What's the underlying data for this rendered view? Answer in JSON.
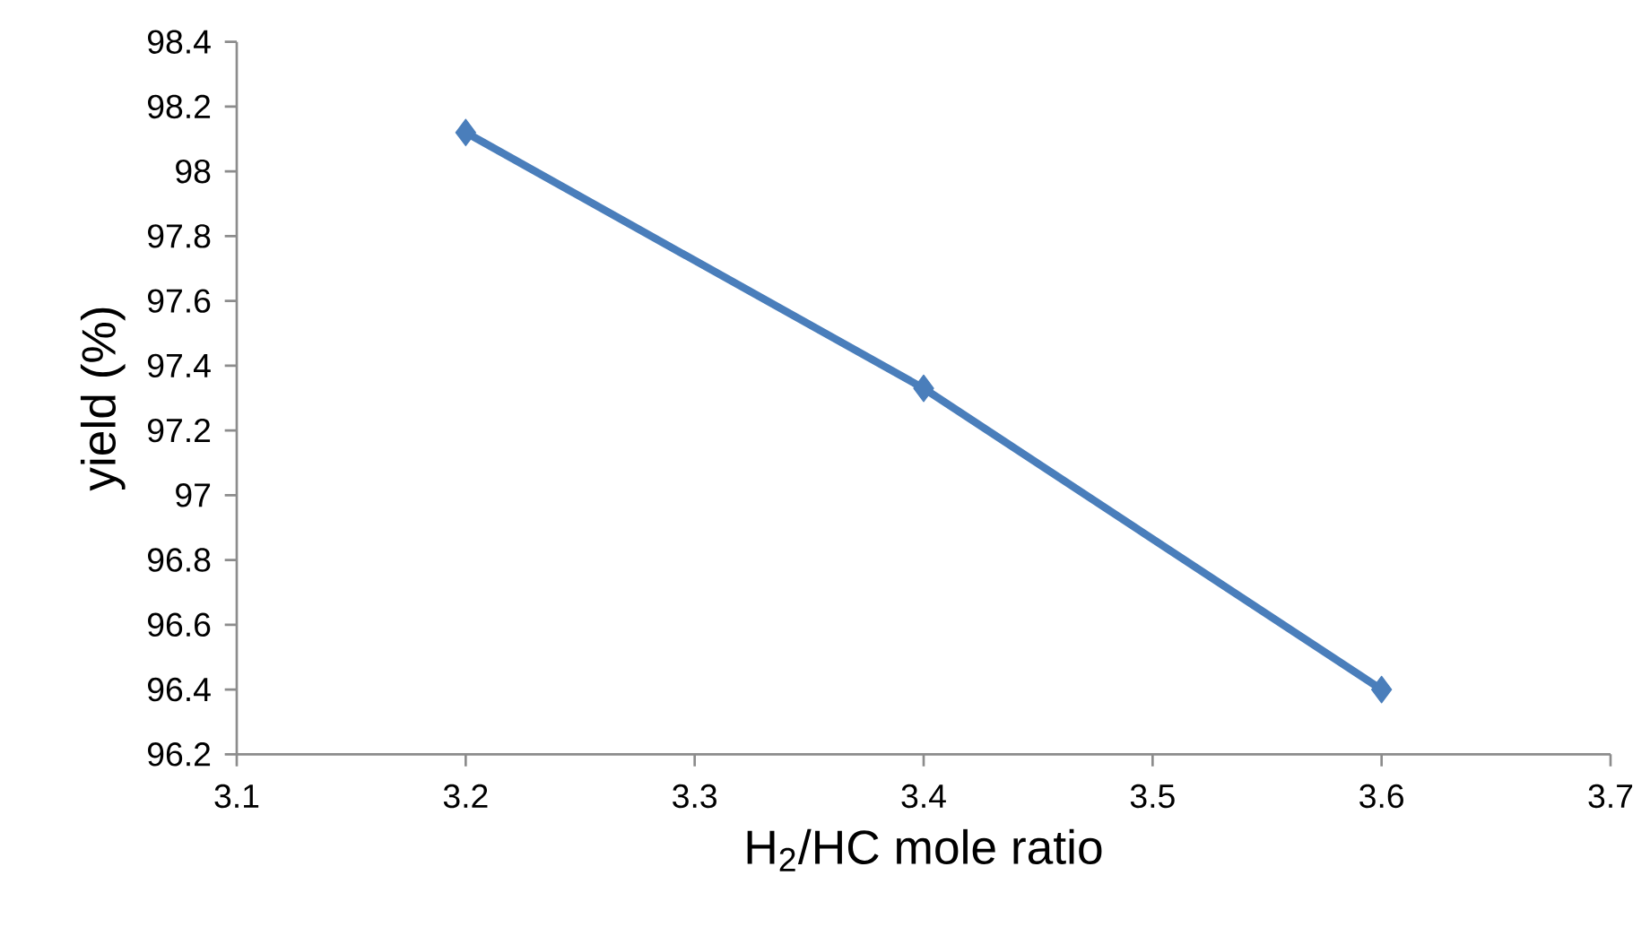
{
  "chart_data": {
    "type": "line",
    "xlabel": "H$_{2}$/HC mole ratio",
    "ylabel": "yield (%)",
    "x": [
      3.2,
      3.4,
      3.6
    ],
    "series": [
      {
        "color": "#4a7ebb",
        "values": [
          98.12,
          97.33,
          96.4
        ]
      }
    ],
    "xlim": [
      3.1,
      3.7
    ],
    "xticks": [
      3.1,
      3.2,
      3.3,
      3.4,
      3.5,
      3.6,
      3.7
    ],
    "ylim": [
      96.2,
      98.4
    ],
    "yticks": [
      96.2,
      96.4,
      96.6,
      96.8,
      97,
      97.2,
      97.4,
      97.6,
      97.8,
      98,
      98.2,
      98.4
    ],
    "grid": false,
    "marker": "diamond",
    "line_style": "solid"
  }
}
